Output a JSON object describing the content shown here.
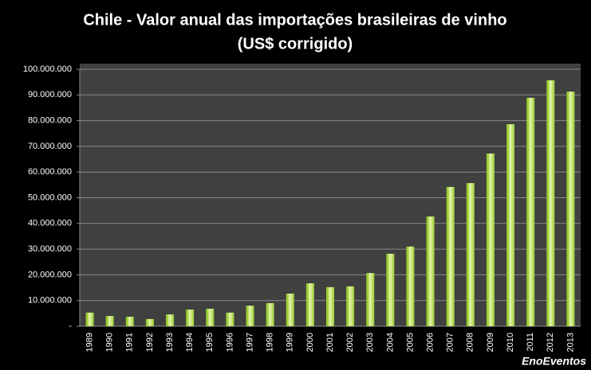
{
  "chart_data": {
    "type": "bar",
    "title": "Chile - Valor anual das importações  brasileiras de vinho",
    "subtitle": "(US$ corrigido)",
    "watermark": "EnoEventos",
    "categories": [
      "1989",
      "1990",
      "1991",
      "1992",
      "1993",
      "1994",
      "1995",
      "1996",
      "1997",
      "1998",
      "1999",
      "2000",
      "2001",
      "2002",
      "2003",
      "2004",
      "2005",
      "2006",
      "2007",
      "2008",
      "2009",
      "2010",
      "2011",
      "2012",
      "2013"
    ],
    "values": [
      5300000,
      4000000,
      3700000,
      2800000,
      4600000,
      6500000,
      6800000,
      5300000,
      8000000,
      9000000,
      12700000,
      16700000,
      15200000,
      15500000,
      20700000,
      28200000,
      31000000,
      42700000,
      54200000,
      55700000,
      67200000,
      78600000,
      88900000,
      95700000,
      91300000
    ],
    "color": "#9acd32",
    "ylim": [
      0,
      100000000
    ],
    "yticks": [
      {
        "value": 0,
        "label": "-"
      },
      {
        "value": 10000000,
        "label": "10.000.000"
      },
      {
        "value": 20000000,
        "label": "20.000.000"
      },
      {
        "value": 30000000,
        "label": "30.000.000"
      },
      {
        "value": 40000000,
        "label": "40.000.000"
      },
      {
        "value": 50000000,
        "label": "50.000.000"
      },
      {
        "value": 60000000,
        "label": "60.000.000"
      },
      {
        "value": 70000000,
        "label": "70.000.000"
      },
      {
        "value": 80000000,
        "label": "80.000.000"
      },
      {
        "value": 90000000,
        "label": "90.000.000"
      },
      {
        "value": 100000000,
        "label": "100.000.000"
      }
    ],
    "grid": true
  }
}
